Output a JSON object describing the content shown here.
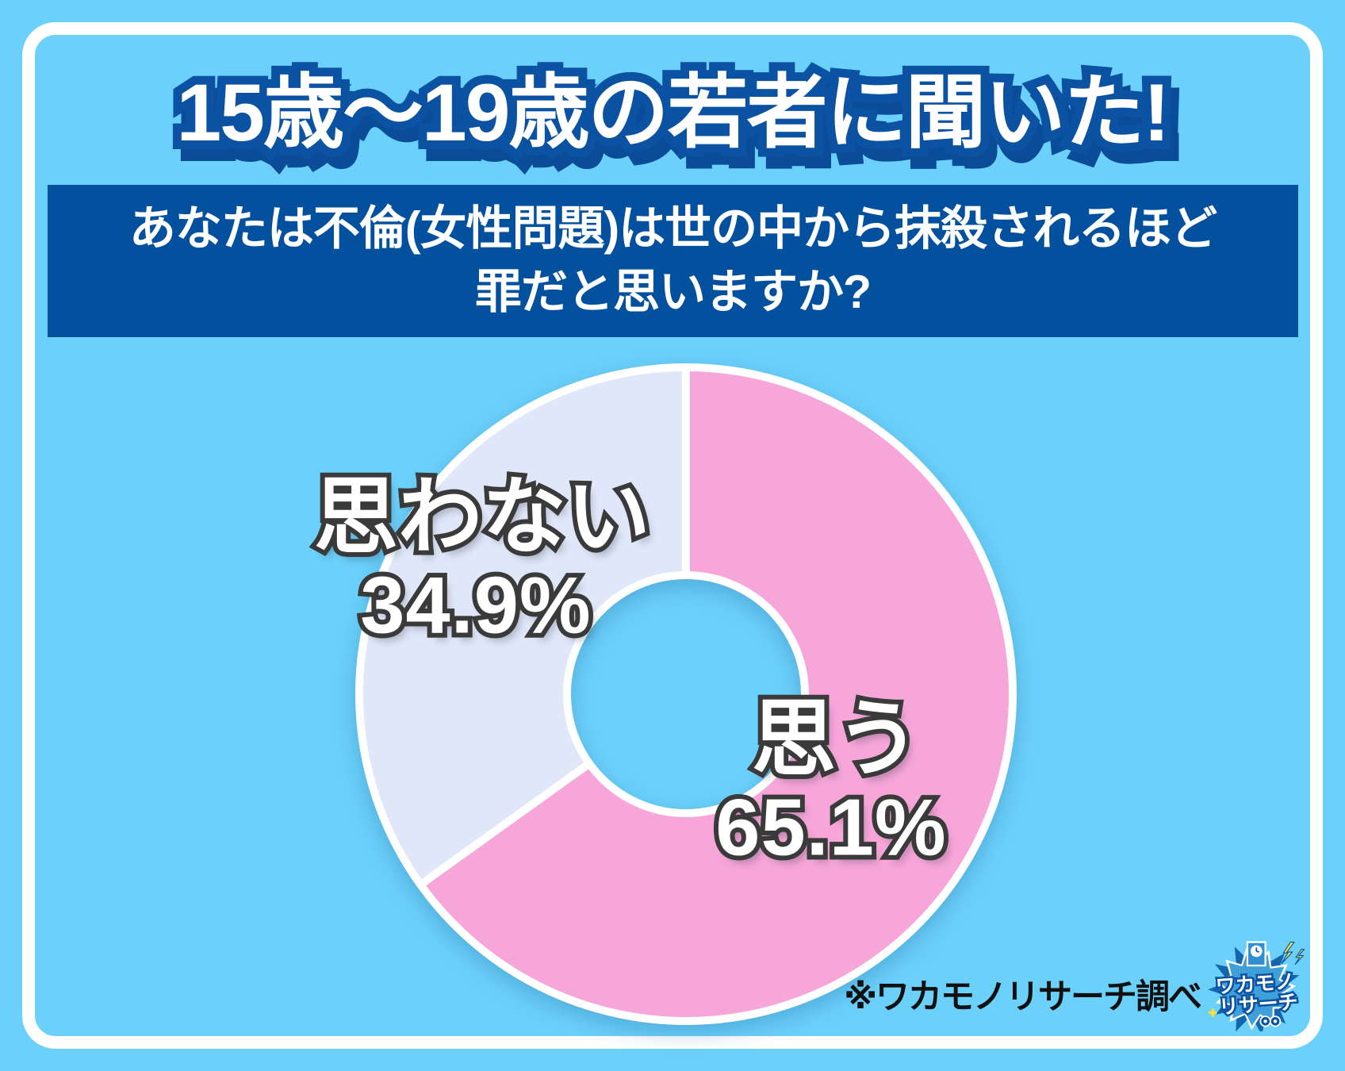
{
  "page": {
    "title": "15歳〜19歳の若者に聞いた!"
  },
  "question": {
    "line1": "あなたは不倫(女性問題)は世の中から抹殺されるほど",
    "line2": "罪だと思いますか?"
  },
  "chart_data": {
    "type": "pie",
    "donut": true,
    "title": "あなたは不倫(女性問題)は世の中から抹殺されるほど罪だと思いますか?",
    "subtitle": "15歳〜19歳の若者に聞いた!",
    "start_angle_deg": 0,
    "direction": "clockwise",
    "unit": "%",
    "legend_position": "on-slices",
    "segments": [
      {
        "label": "思う",
        "value": 65.1,
        "display": "65.1%",
        "color": "#F7A6D9"
      },
      {
        "label": "思わない",
        "value": 34.9,
        "display": "34.9%",
        "color": "#DFE7F8"
      }
    ],
    "source": "※ワカモノリサーチ調べ"
  },
  "footer": {
    "source_note": "※ワカモノリサーチ調べ",
    "logo": {
      "line1": "ワカモノ",
      "line2": "リサーチ",
      "icons": [
        "clock-icon",
        "lightning-icon",
        "binoculars-icon",
        "sparkle-icon"
      ]
    }
  },
  "colors": {
    "background": "#6BD1FA",
    "frame": "#FFFFFF",
    "banner": "#03509E",
    "title_outline": "#0B52A2",
    "title_shadow": "#0A4C97",
    "slice_yes": "#F7A6D9",
    "slice_no": "#DFE7F8",
    "slice_stroke": "#FFFFFF",
    "label_outline": "#3A3A3A",
    "caption": "#111111",
    "logo_blue": "#3E9FD9",
    "logo_dark_blue": "#1565AE",
    "logo_yellow": "#F5E33A"
  }
}
